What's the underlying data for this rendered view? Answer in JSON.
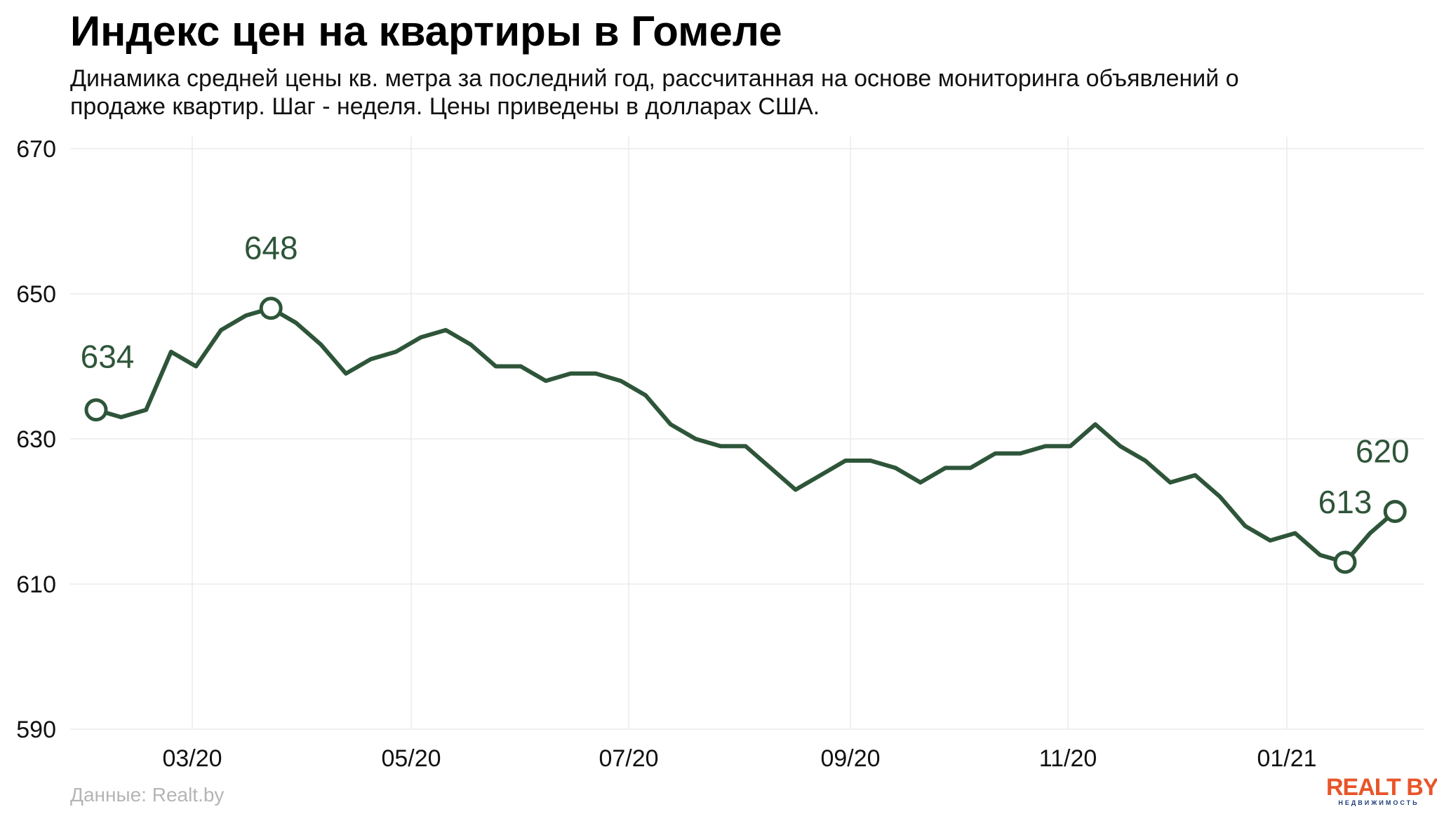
{
  "header": {
    "title": "Индекс цен на квартиры в Гомеле",
    "subtitle": "Динамика средней цены кв. метра за последний год, рассчитанная на основе мониторинга объявлений о продаже квартир. Шаг - неделя. Цены приведены в долларах США."
  },
  "footer": {
    "source": "Данные: Realt.by",
    "logo_main": "REALT BY",
    "logo_sub": "НЕДВИЖИМОСТЬ"
  },
  "colors": {
    "line": "#2e5539",
    "grid": "#ebebeb",
    "logo_accent": "#e8552a"
  },
  "chart_data": {
    "type": "line",
    "title": "Индекс цен на квартиры в Гомеле",
    "xlabel": "",
    "ylabel": "",
    "ylim": [
      590,
      670
    ],
    "y_ticks": [
      590,
      610,
      630,
      650,
      670
    ],
    "x_ticks": [
      "03/20",
      "05/20",
      "07/20",
      "09/20",
      "11/20",
      "01/21"
    ],
    "grid": true,
    "series": [
      {
        "values": [
          634,
          633,
          634,
          642,
          640,
          645,
          647,
          648,
          646,
          643,
          639,
          641,
          642,
          644,
          645,
          643,
          640,
          640,
          638,
          639,
          639,
          638,
          636,
          632,
          630,
          629,
          629,
          626,
          623,
          625,
          627,
          627,
          626,
          624,
          626,
          626,
          628,
          628,
          629,
          629,
          632,
          629,
          627,
          624,
          625,
          622,
          618,
          616,
          617,
          614,
          613,
          617,
          620
        ]
      }
    ],
    "highlighted_points": [
      {
        "index": 0,
        "label": "634"
      },
      {
        "index": 7,
        "label": "648"
      },
      {
        "index": 50,
        "label": "613"
      },
      {
        "index": 52,
        "label": "620"
      }
    ]
  }
}
